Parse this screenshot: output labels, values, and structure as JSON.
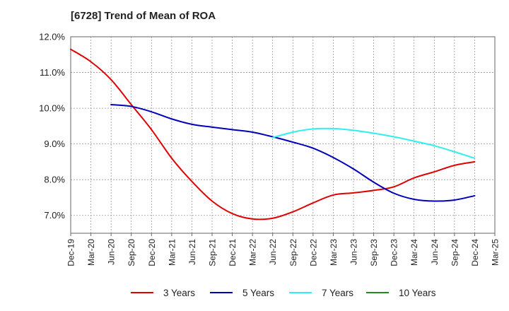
{
  "title": "[6728]  Trend of Mean of ROA",
  "chart_data": {
    "type": "line",
    "title": "[6728]  Trend of Mean of ROA",
    "xlabel": "",
    "ylabel": "",
    "categories": [
      "Dec-19",
      "Mar-20",
      "Jun-20",
      "Sep-20",
      "Dec-20",
      "Mar-21",
      "Jun-21",
      "Sep-21",
      "Dec-21",
      "Mar-22",
      "Jun-22",
      "Sep-22",
      "Dec-22",
      "Mar-23",
      "Jun-23",
      "Sep-23",
      "Dec-23",
      "Mar-24",
      "Jun-24",
      "Sep-24",
      "Dec-24",
      "Mar-25"
    ],
    "y_ticks": [
      "12.0%",
      "11.0%",
      "10.0%",
      "9.0%",
      "8.0%",
      "7.0%"
    ],
    "ylim": [
      6.5,
      12.0
    ],
    "grid": true,
    "legend_position": "bottom",
    "series": [
      {
        "name": "3 Years",
        "color": "#e00000",
        "values": [
          11.65,
          11.3,
          10.8,
          10.1,
          9.4,
          8.6,
          7.95,
          7.4,
          7.05,
          6.9,
          6.92,
          7.1,
          7.35,
          7.57,
          7.63,
          7.7,
          7.8,
          8.05,
          8.22,
          8.4,
          8.5,
          null
        ]
      },
      {
        "name": "5 Years",
        "color": "#0000bb",
        "values": [
          null,
          null,
          10.1,
          10.05,
          9.9,
          9.7,
          9.55,
          9.47,
          9.4,
          9.33,
          9.2,
          9.05,
          8.88,
          8.62,
          8.3,
          7.93,
          7.62,
          7.45,
          7.4,
          7.43,
          7.55,
          null
        ]
      },
      {
        "name": "7 Years",
        "color": "#33eeee",
        "values": [
          null,
          null,
          null,
          null,
          null,
          null,
          null,
          null,
          null,
          null,
          9.18,
          9.33,
          9.42,
          9.43,
          9.38,
          9.3,
          9.2,
          9.08,
          8.95,
          8.78,
          8.6,
          null
        ]
      },
      {
        "name": "10 Years",
        "color": "#228b22",
        "values": [
          null,
          null,
          null,
          null,
          null,
          null,
          null,
          null,
          null,
          null,
          null,
          null,
          null,
          null,
          null,
          null,
          null,
          null,
          null,
          null,
          null,
          null
        ]
      }
    ]
  }
}
